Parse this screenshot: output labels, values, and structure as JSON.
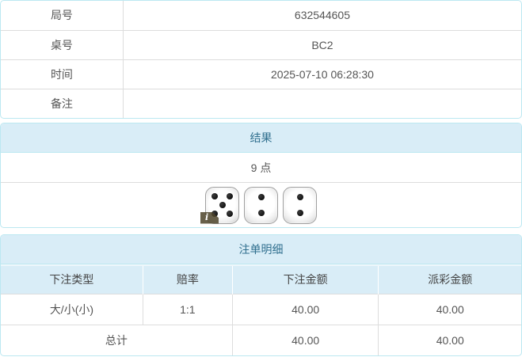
{
  "info_table": {
    "rows": [
      {
        "label": "局号",
        "value": "632544605"
      },
      {
        "label": "桌号",
        "value": "BC2"
      },
      {
        "label": "时间",
        "value": "2025-07-10 06:28:30"
      },
      {
        "label": "备注",
        "value": ""
      }
    ]
  },
  "result_panel": {
    "title": "结果",
    "points": "9 点",
    "dice": [
      5,
      2,
      2
    ],
    "info_badge": "i"
  },
  "bet_panel": {
    "title": "注单明细",
    "columns": {
      "bet_type": "下注类型",
      "odds": "赔率",
      "bet_amount": "下注金额",
      "payout_amount": "派彩金额"
    },
    "rows": [
      {
        "bet_type": "大/小(小)",
        "odds": "1:1",
        "bet_amount": "40.00",
        "payout_amount": "40.00"
      }
    ],
    "total": {
      "label": "总计",
      "bet_amount": "40.00",
      "payout_amount": "40.00"
    }
  },
  "colors": {
    "panel_header_bg": "#d9edf7",
    "panel_header_text": "#31708f",
    "panel_border": "#bce8f1",
    "inner_border": "#dddddd",
    "odds_text": "#ff0000",
    "body_text": "#555555"
  }
}
